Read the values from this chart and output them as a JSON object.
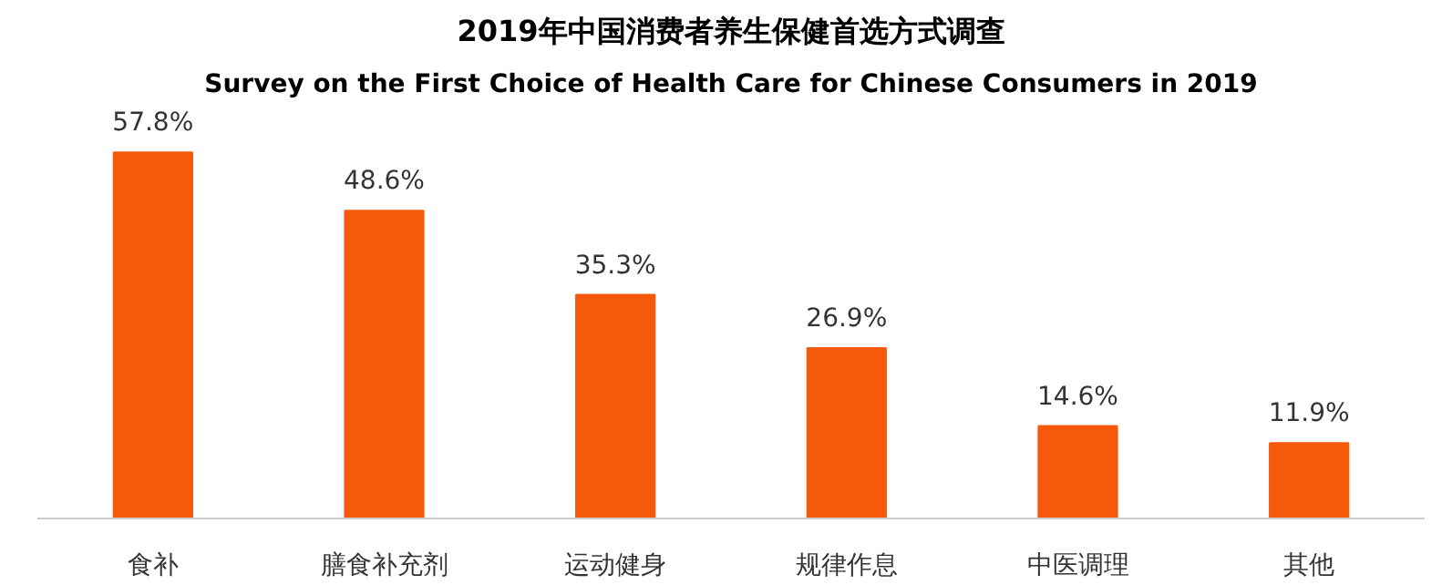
{
  "chart_data": {
    "type": "bar",
    "title": "2019年中国消费者养生保健首选方式调查",
    "subtitle": "Survey on the First Choice of Health Care for Chinese Consumers in 2019",
    "categories": [
      "食补",
      "膳食补充剂",
      "运动健身",
      "规律作息",
      "中医调理",
      "其他"
    ],
    "values": [
      57.8,
      48.6,
      35.3,
      26.9,
      14.6,
      11.9
    ],
    "value_labels": [
      "57.8%",
      "48.6%",
      "35.3%",
      "26.9%",
      "14.6%",
      "11.9%"
    ],
    "color": "#f55a0c"
  }
}
